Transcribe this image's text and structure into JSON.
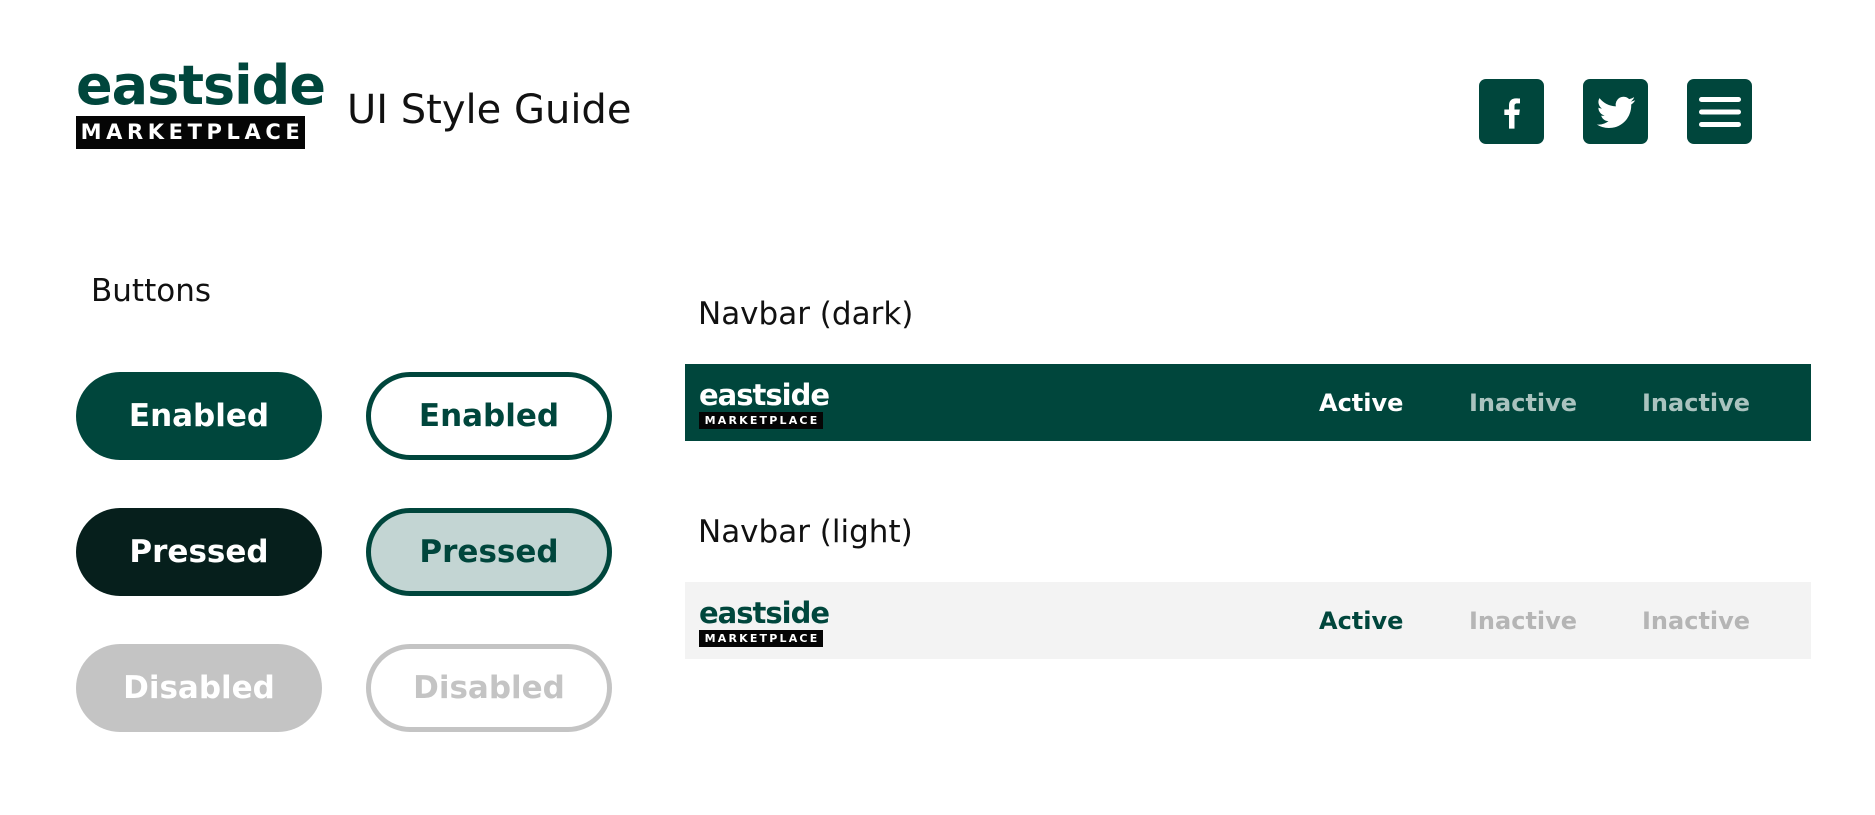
{
  "header": {
    "logo": {
      "wordmark": "eastside",
      "plate": "MARKETPLACE"
    },
    "title": "UI Style Guide",
    "icons": [
      "facebook-icon",
      "twitter-icon",
      "hamburger-menu-icon"
    ]
  },
  "buttons": {
    "section_label": "Buttons",
    "solid": {
      "enabled": "Enabled",
      "pressed": "Pressed",
      "disabled": "Disabled"
    },
    "outline": {
      "enabled": "Enabled",
      "pressed": "Pressed",
      "disabled": "Disabled"
    }
  },
  "navbar_dark": {
    "section_label": "Navbar (dark)",
    "logo": {
      "wordmark": "eastside",
      "plate": "MARKETPLACE"
    },
    "items": [
      {
        "label": "Active",
        "state": "active"
      },
      {
        "label": "Inactive",
        "state": "inactive"
      },
      {
        "label": "Inactive",
        "state": "inactive"
      }
    ]
  },
  "navbar_light": {
    "section_label": "Navbar (light)",
    "logo": {
      "wordmark": "eastside",
      "plate": "MARKETPLACE"
    },
    "items": [
      {
        "label": "Active",
        "state": "active"
      },
      {
        "label": "Inactive",
        "state": "inactive"
      },
      {
        "label": "Inactive",
        "state": "inactive"
      }
    ]
  },
  "colors": {
    "brand_green": "#00463c",
    "pressed_dark": "#061f1c",
    "pressed_light": "#c3d5d3",
    "disabled_gray": "#c4c4c4",
    "light_navbar_bg": "#f3f3f3",
    "black_plate": "#050505"
  }
}
